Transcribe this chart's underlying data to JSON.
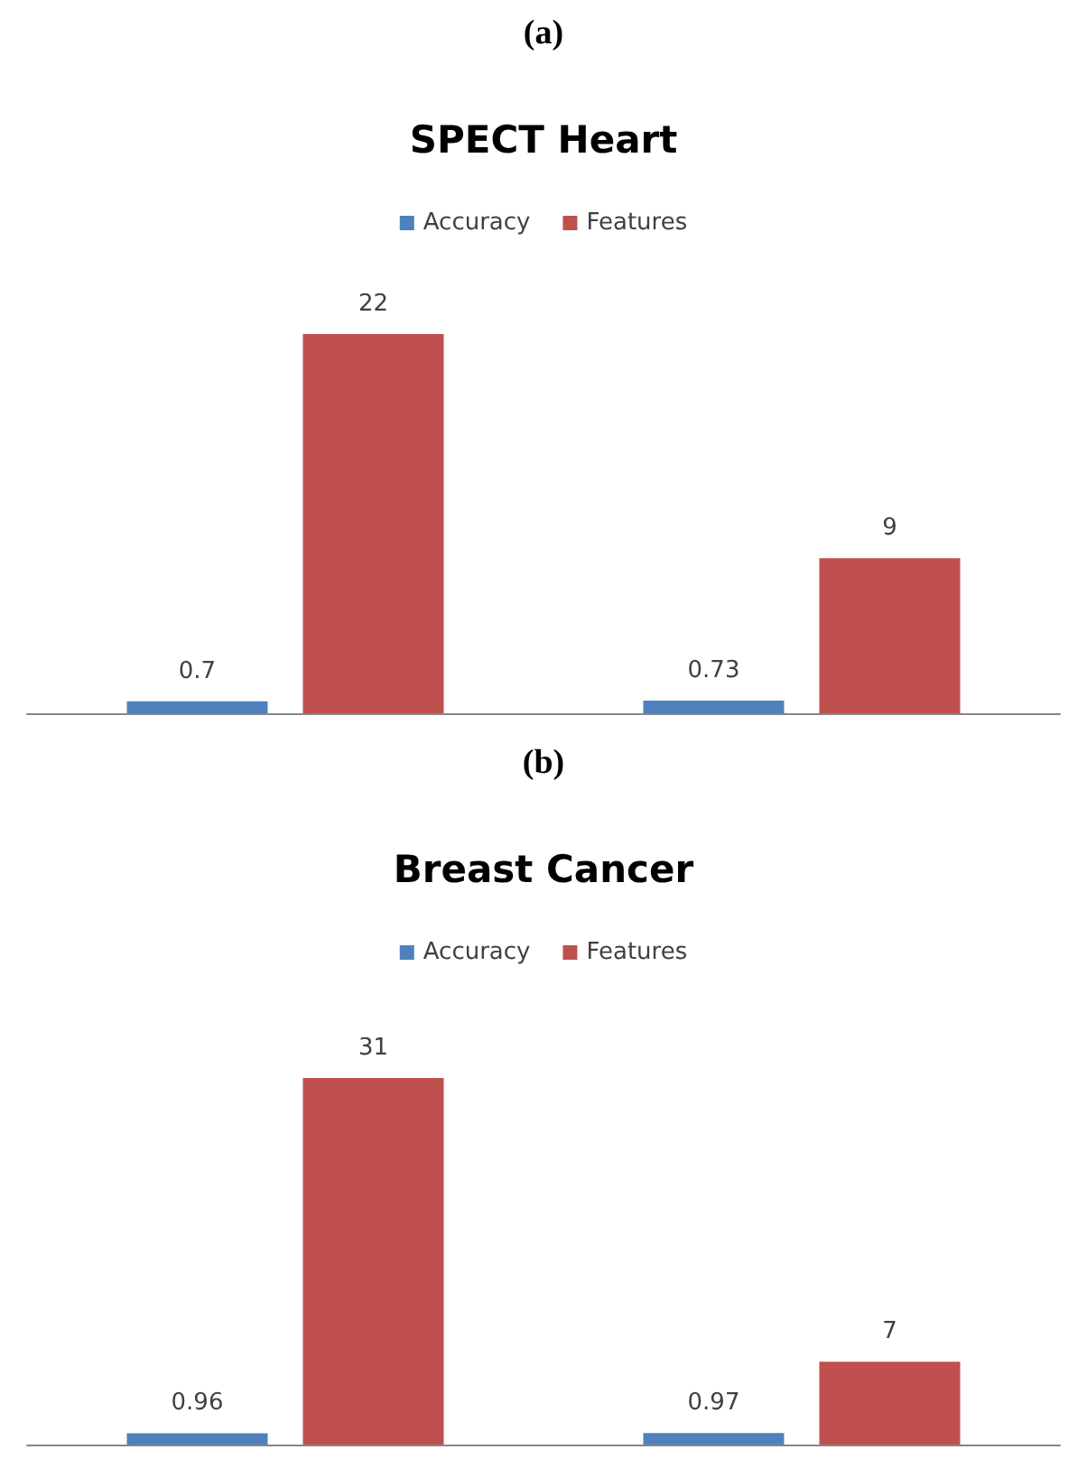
{
  "chart_data": [
    {
      "type": "bar",
      "title": "SPECT Heart",
      "annotations": [
        "(a)"
      ],
      "categories": [
        null,
        null
      ],
      "series": [
        {
          "name": "Accuracy",
          "color": "#4f81bd",
          "values": [
            0.7,
            0.73
          ]
        },
        {
          "name": "Features",
          "color": "#c0504d",
          "values": [
            22,
            9
          ]
        }
      ],
      "data_labels": true,
      "legend": "top",
      "grid": false
    },
    {
      "type": "bar",
      "title": "Breast Cancer",
      "annotations": [
        "(b)"
      ],
      "categories": [
        null,
        null
      ],
      "series": [
        {
          "name": "Accuracy",
          "color": "#4f81bd",
          "values": [
            0.96,
            0.97
          ]
        },
        {
          "name": "Features",
          "color": "#c0504d",
          "values": [
            31,
            7
          ]
        }
      ],
      "data_labels": true,
      "legend": "top",
      "grid": false
    }
  ]
}
